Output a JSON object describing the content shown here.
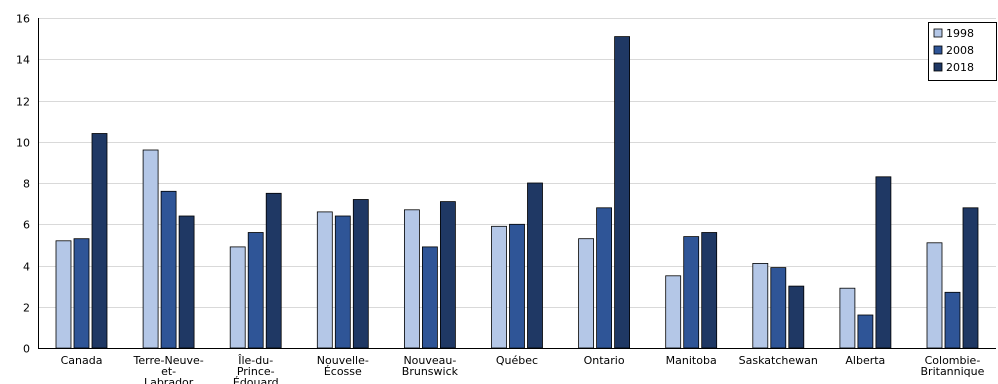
{
  "chart_data": {
    "type": "bar",
    "categories": [
      "Canada",
      "Terre-Neuve-\net-\nLabrador",
      "Île-du-\nPrince-\nÉdouard",
      "Nouvelle-\nÉcosse",
      "Nouveau-\nBrunswick",
      "Québec",
      "Ontario",
      "Manitoba",
      "Saskatchewan",
      "Alberta",
      "Colombie-\nBritannique"
    ],
    "series": [
      {
        "name": "1998",
        "color": "#b4c7e7",
        "values": [
          5.2,
          9.6,
          4.9,
          6.6,
          6.7,
          5.9,
          5.3,
          3.5,
          4.1,
          2.9,
          5.1
        ]
      },
      {
        "name": "2008",
        "color": "#2f5597",
        "values": [
          5.3,
          7.6,
          5.6,
          6.4,
          4.9,
          6.0,
          6.8,
          5.4,
          3.9,
          1.6,
          2.7
        ]
      },
      {
        "name": "2018",
        "color": "#1f3864",
        "values": [
          10.4,
          6.4,
          7.5,
          7.2,
          7.1,
          8.0,
          15.1,
          5.6,
          3.0,
          8.3,
          6.8
        ]
      }
    ],
    "ylim": [
      0,
      16
    ],
    "yticks": [
      "0",
      "2",
      "4",
      "6",
      "8",
      "10",
      "12",
      "14",
      "16"
    ],
    "grid": true,
    "legend_position": "top-right",
    "title": "",
    "xlabel": "",
    "ylabel": ""
  }
}
